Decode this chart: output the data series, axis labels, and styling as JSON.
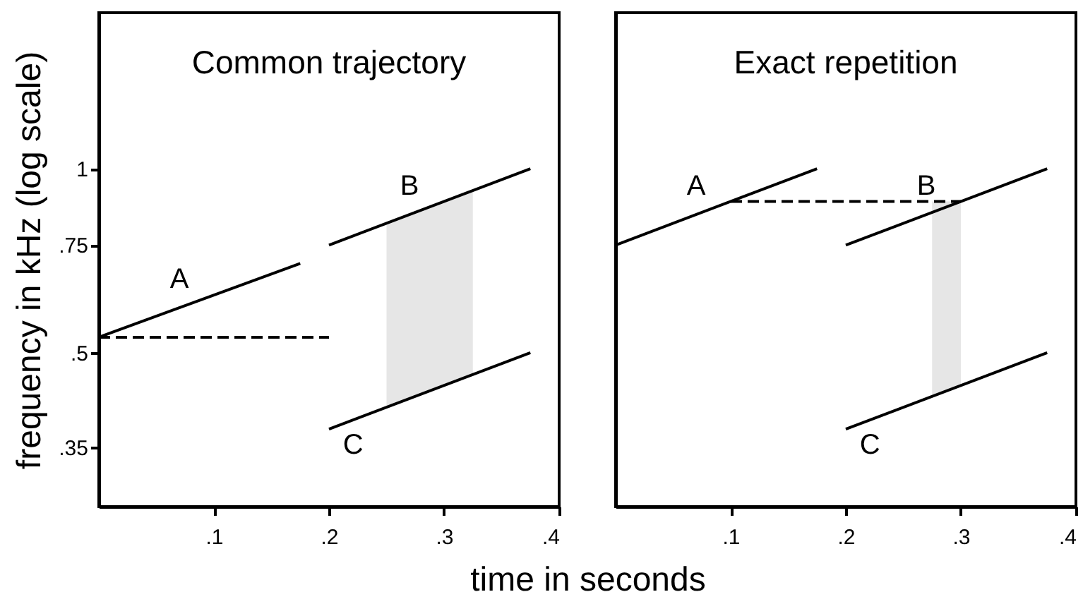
{
  "chart_data": [
    {
      "type": "line",
      "title": "Common trajectory",
      "xlabel": "time in seconds",
      "ylabel": "frequency in kHz (log scale)",
      "log": "y",
      "grid": false,
      "xlim": [
        0,
        0.4
      ],
      "ylim": [
        0.28,
        1.8
      ],
      "xticks": [
        {
          "value": 0.1,
          "label": ".1"
        },
        {
          "value": 0.2,
          "label": ".2"
        },
        {
          "value": 0.3,
          "label": ".3"
        },
        {
          "value": 0.4,
          "label": ".4"
        }
      ],
      "yticks": [
        {
          "value": 0.35,
          "label": ".35"
        },
        {
          "value": 0.5,
          "label": ".5"
        },
        {
          "value": 0.75,
          "label": ".75"
        },
        {
          "value": 1,
          "label": "1"
        }
      ],
      "bands": [
        {
          "axis": "x",
          "from": 0.25,
          "to": 0.325,
          "color": "#e6e6e6"
        }
      ],
      "series": [
        {
          "name": "A",
          "color": "#000000",
          "x": [
            0,
            0.175
          ],
          "values": [
            0.53,
            0.7
          ]
        },
        {
          "name": "B",
          "color": "#000000",
          "x": [
            0.2,
            0.375
          ],
          "values": [
            0.75,
            1.0
          ]
        },
        {
          "name": "C",
          "color": "#000000",
          "x": [
            0.2,
            0.375
          ],
          "values": [
            0.375,
            0.5
          ]
        },
        {
          "color": "#000000",
          "line_style": "dashed",
          "x": [
            0,
            0.2
          ],
          "values": [
            0.53,
            0.53
          ]
        }
      ]
    },
    {
      "type": "line",
      "title": "Exact repetition",
      "tick_labels": "x",
      "log": "y",
      "grid": false,
      "xlim": [
        0,
        0.4
      ],
      "ylim": [
        0.28,
        1.8
      ],
      "xticks": [
        {
          "value": 0.1,
          "label": ".1"
        },
        {
          "value": 0.2,
          "label": ".2"
        },
        {
          "value": 0.3,
          "label": ".3"
        },
        {
          "value": 0.4,
          "label": ".4"
        }
      ],
      "bands": [
        {
          "axis": "x",
          "from": 0.275,
          "to": 0.3,
          "color": "#e6e6e6"
        }
      ],
      "series": [
        {
          "name": "A",
          "color": "#000000",
          "x": [
            0,
            0.175
          ],
          "values": [
            0.75,
            1.0
          ]
        },
        {
          "name": "B",
          "color": "#000000",
          "x": [
            0.2,
            0.375
          ],
          "values": [
            0.75,
            1.0
          ]
        },
        {
          "name": "C",
          "color": "#000000",
          "x": [
            0.2,
            0.375
          ],
          "values": [
            0.375,
            0.5
          ]
        },
        {
          "color": "#000000",
          "line_style": "dashed",
          "x": [
            0.1,
            0.3
          ],
          "values": [
            0.884,
            0.884
          ]
        }
      ]
    }
  ]
}
